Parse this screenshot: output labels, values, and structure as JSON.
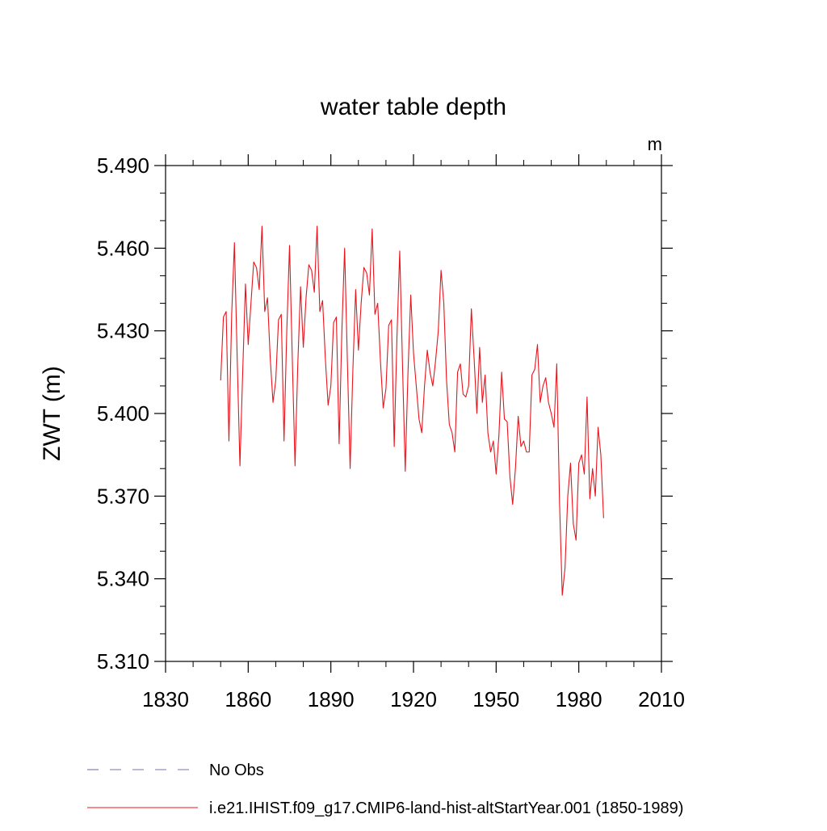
{
  "chart_data": {
    "type": "line",
    "title": "water table depth",
    "units": "m",
    "xlabel": "",
    "ylabel": "ZWT  (m)",
    "xlim": [
      1830,
      2010
    ],
    "ylim": [
      5.31,
      5.49
    ],
    "x_ticks": [
      1830,
      1860,
      1890,
      1920,
      1950,
      1980,
      2010
    ],
    "y_ticks": [
      5.31,
      5.34,
      5.37,
      5.4,
      5.43,
      5.46,
      5.49
    ],
    "x_tick_labels": [
      "1830",
      "1860",
      "1890",
      "1920",
      "1950",
      "1980",
      "2010"
    ],
    "y_tick_labels": [
      "5.310",
      "5.340",
      "5.370",
      "5.400",
      "5.430",
      "5.460",
      "5.490"
    ],
    "grid": false,
    "legend_position": "bottom-left",
    "series": [
      {
        "name": "No Obs",
        "style": "dashed",
        "color": "#7b6fb0",
        "x": [],
        "values": []
      },
      {
        "name": "i.e21.IHIST.f09_g17.CMIP6-land-hist-altStartYear.001 (1850-1989)",
        "style": "solid",
        "color": "#e8141c",
        "x_start": 1850,
        "x_step": 1,
        "values": [
          5.412,
          5.435,
          5.437,
          5.39,
          5.436,
          5.462,
          5.42,
          5.381,
          5.415,
          5.447,
          5.425,
          5.44,
          5.455,
          5.453,
          5.445,
          5.468,
          5.437,
          5.442,
          5.42,
          5.404,
          5.412,
          5.434,
          5.436,
          5.39,
          5.43,
          5.461,
          5.42,
          5.381,
          5.418,
          5.446,
          5.424,
          5.442,
          5.454,
          5.452,
          5.444,
          5.468,
          5.437,
          5.441,
          5.42,
          5.403,
          5.41,
          5.433,
          5.435,
          5.389,
          5.43,
          5.46,
          5.419,
          5.38,
          5.416,
          5.445,
          5.423,
          5.44,
          5.453,
          5.451,
          5.443,
          5.467,
          5.436,
          5.44,
          5.419,
          5.402,
          5.409,
          5.432,
          5.434,
          5.388,
          5.428,
          5.459,
          5.418,
          5.379,
          5.415,
          5.443,
          5.422,
          5.41,
          5.398,
          5.393,
          5.41,
          5.423,
          5.415,
          5.41,
          5.419,
          5.43,
          5.452,
          5.44,
          5.412,
          5.396,
          5.393,
          5.386,
          5.415,
          5.418,
          5.407,
          5.406,
          5.41,
          5.438,
          5.42,
          5.4,
          5.424,
          5.404,
          5.414,
          5.393,
          5.386,
          5.39,
          5.378,
          5.392,
          5.415,
          5.398,
          5.397,
          5.377,
          5.367,
          5.38,
          5.399,
          5.388,
          5.39,
          5.386,
          5.386,
          5.414,
          5.416,
          5.425,
          5.404,
          5.41,
          5.413,
          5.404,
          5.4,
          5.395,
          5.418,
          5.368,
          5.334,
          5.344,
          5.37,
          5.382,
          5.36,
          5.354,
          5.382,
          5.385,
          5.378,
          5.406,
          5.369,
          5.38,
          5.37,
          5.395,
          5.385,
          5.362
        ]
      }
    ]
  }
}
